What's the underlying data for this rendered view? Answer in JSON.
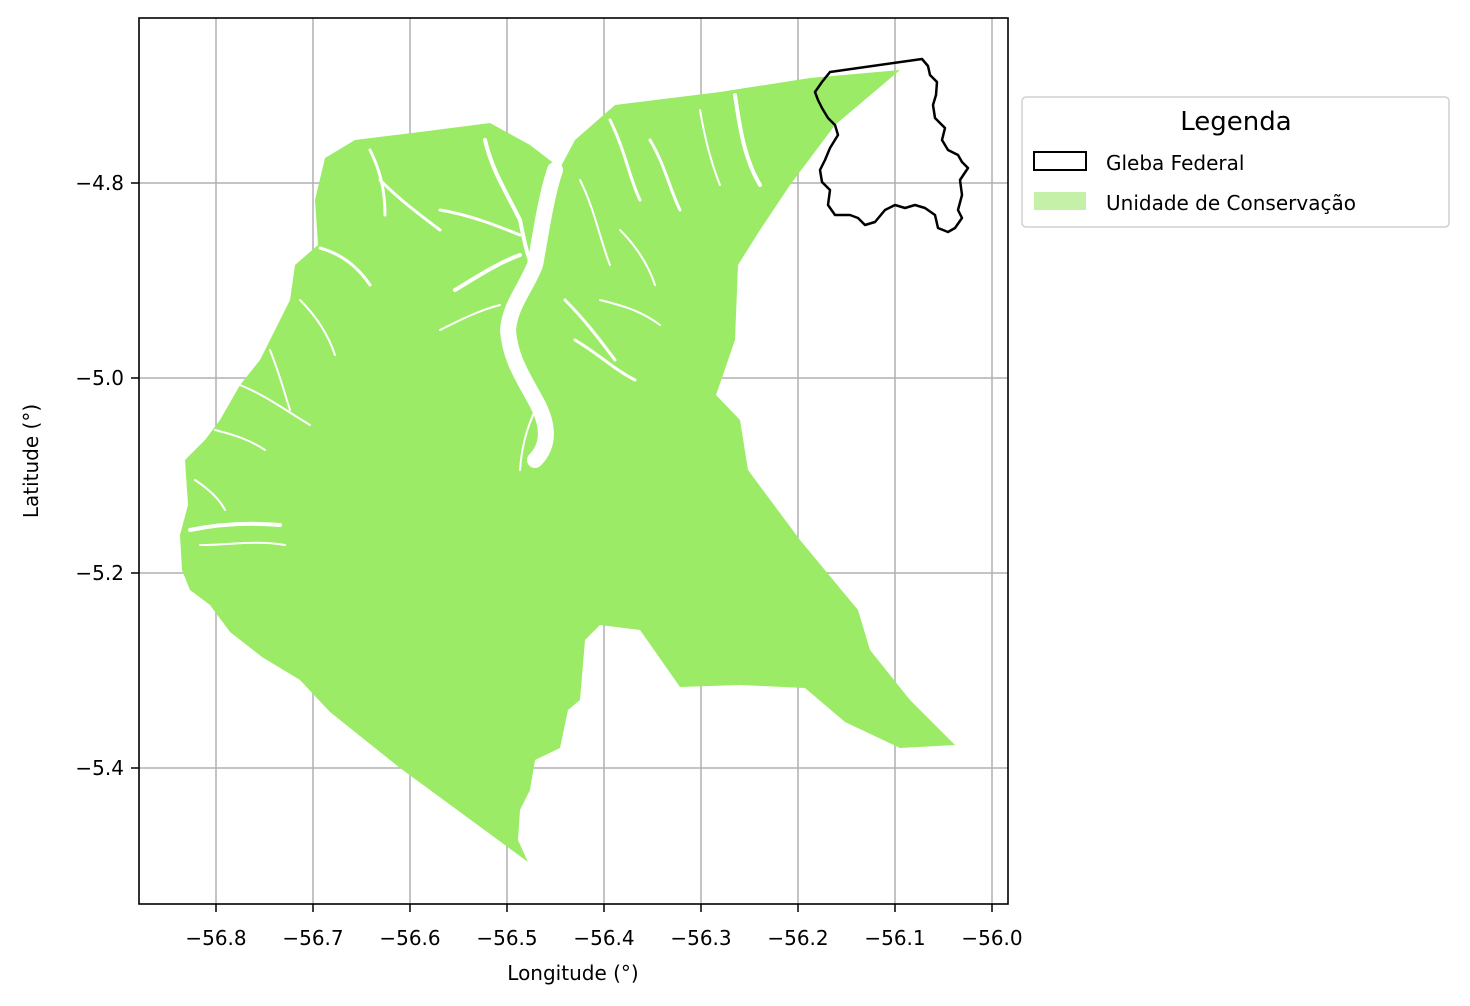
{
  "figure": {
    "xlabel": "Longitude (°)",
    "ylabel": "Latitude (°)",
    "xticks": [
      "−56.8",
      "−56.7",
      "−56.6",
      "−56.5",
      "−56.4",
      "−56.3",
      "−56.2",
      "−56.1",
      "−56.0"
    ],
    "yticks": [
      "−4.8",
      "−5.0",
      "−5.2",
      "−5.4"
    ],
    "grid": true
  },
  "legend": {
    "title": "Legenda",
    "position": "outside-right-top",
    "items": [
      {
        "label": "Gleba Federal",
        "style": "outline",
        "color": "#000000"
      },
      {
        "label": "Unidade de Conservação",
        "style": "fill",
        "color": "#c5f0a7"
      }
    ]
  },
  "layers": {
    "conservation_unit": {
      "fill": "#9beb67"
    },
    "federal_gleba": {
      "stroke": "#000000"
    }
  },
  "colors": {
    "grid": "#b0b0b0",
    "axes": "#000000"
  }
}
